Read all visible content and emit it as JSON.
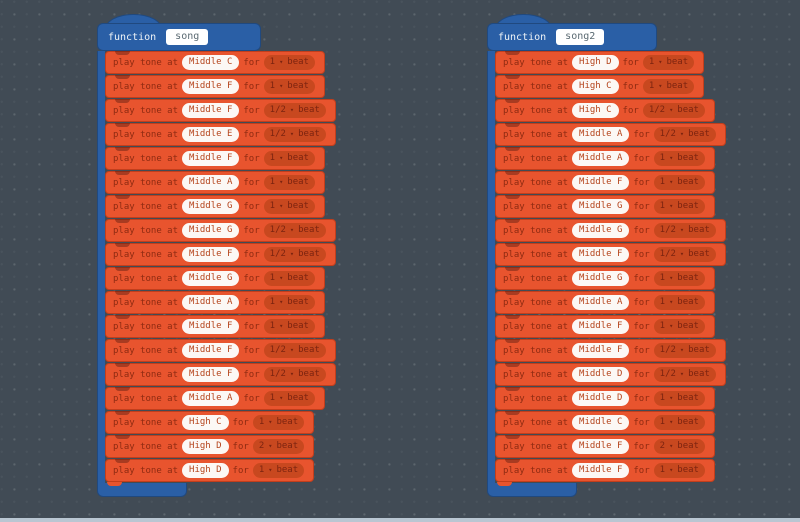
{
  "canvas": {
    "background": "#414b55",
    "bottom_bar_color": "#b9c6d2"
  },
  "colors": {
    "function_blue": "#2a5fa6",
    "function_blue_border": "#20497f",
    "block_orange": "#e8542e",
    "block_orange_border": "#c23e1c",
    "beat_pill": "#c8481f",
    "label_text": "#8e2b12",
    "note_text": "#b5441c",
    "pill_text": "#7c2410"
  },
  "labels": {
    "function_keyword": "function",
    "play_prefix": "play tone at",
    "for_word": "for",
    "beat_word": "beat",
    "dropdown_arrow": "▾"
  },
  "functions": [
    {
      "name": "song",
      "blocks": [
        {
          "note": "Middle C",
          "beats": "1"
        },
        {
          "note": "Middle F",
          "beats": "1"
        },
        {
          "note": "Middle F",
          "beats": "1/2"
        },
        {
          "note": "Middle E",
          "beats": "1/2"
        },
        {
          "note": "Middle F",
          "beats": "1"
        },
        {
          "note": "Middle A",
          "beats": "1"
        },
        {
          "note": "Middle G",
          "beats": "1"
        },
        {
          "note": "Middle G",
          "beats": "1/2"
        },
        {
          "note": "Middle F",
          "beats": "1/2"
        },
        {
          "note": "Middle G",
          "beats": "1"
        },
        {
          "note": "Middle A",
          "beats": "1"
        },
        {
          "note": "Middle F",
          "beats": "1"
        },
        {
          "note": "Middle F",
          "beats": "1/2"
        },
        {
          "note": "Middle F",
          "beats": "1/2"
        },
        {
          "note": "Middle A",
          "beats": "1"
        },
        {
          "note": "High C",
          "beats": "1"
        },
        {
          "note": "High D",
          "beats": "2"
        },
        {
          "note": "High D",
          "beats": "1"
        }
      ]
    },
    {
      "name": "song2",
      "blocks": [
        {
          "note": "High D",
          "beats": "1"
        },
        {
          "note": "High C",
          "beats": "1"
        },
        {
          "note": "High C",
          "beats": "1/2"
        },
        {
          "note": "Middle A",
          "beats": "1/2"
        },
        {
          "note": "Middle A",
          "beats": "1"
        },
        {
          "note": "Middle F",
          "beats": "1"
        },
        {
          "note": "Middle G",
          "beats": "1"
        },
        {
          "note": "Middle G",
          "beats": "1/2"
        },
        {
          "note": "Middle F",
          "beats": "1/2"
        },
        {
          "note": "Middle G",
          "beats": "1"
        },
        {
          "note": "Middle A",
          "beats": "1"
        },
        {
          "note": "Middle F",
          "beats": "1"
        },
        {
          "note": "Middle F",
          "beats": "1/2"
        },
        {
          "note": "Middle D",
          "beats": "1/2"
        },
        {
          "note": "Middle D",
          "beats": "1"
        },
        {
          "note": "Middle C",
          "beats": "1"
        },
        {
          "note": "Middle F",
          "beats": "2"
        },
        {
          "note": "Middle F",
          "beats": "1"
        }
      ]
    }
  ]
}
